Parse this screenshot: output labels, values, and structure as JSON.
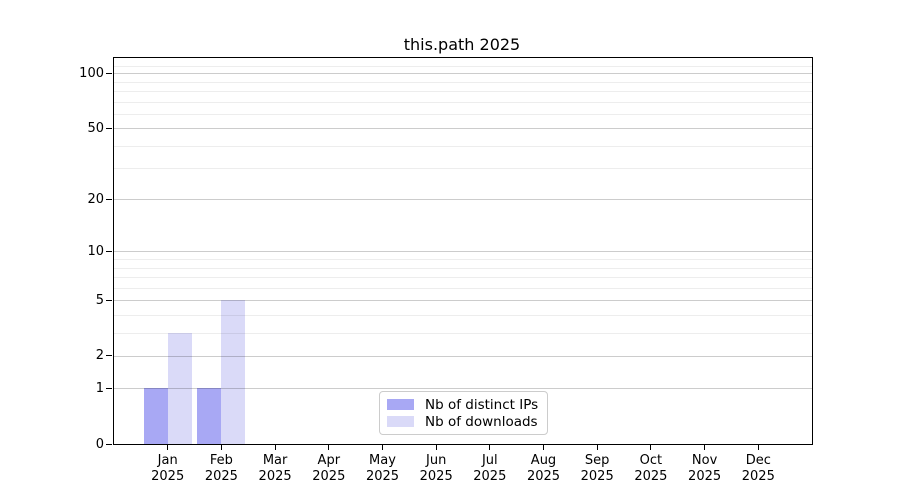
{
  "figure": {
    "title": "this.path 2025"
  },
  "chart_data": {
    "type": "bar",
    "title": "this.path 2025",
    "x_categories": [
      "Jan",
      "Feb",
      "Mar",
      "Apr",
      "May",
      "Jun",
      "Jul",
      "Aug",
      "Sep",
      "Oct",
      "Nov",
      "Dec"
    ],
    "x_year": "2025",
    "series": [
      {
        "name": "Nb of distinct IPs",
        "color": "#a8a8f4",
        "values": [
          1,
          1,
          0,
          0,
          0,
          0,
          0,
          0,
          0,
          0,
          0,
          0
        ]
      },
      {
        "name": "Nb of downloads",
        "color": "#dadaf8",
        "values": [
          3,
          5,
          0,
          0,
          0,
          0,
          0,
          0,
          0,
          0,
          0,
          0
        ]
      }
    ],
    "yscale": "log10(1+x)",
    "ylim": [
      0,
      121
    ],
    "y_major_ticks": [
      0,
      1,
      2,
      5,
      10,
      20,
      50,
      100
    ],
    "y_minor_ticks": [
      3,
      4,
      6,
      7,
      8,
      9,
      30,
      40,
      60,
      70,
      80,
      90,
      110
    ],
    "grid": "horizontal-only",
    "legend_position": "inside-bottom-center"
  }
}
